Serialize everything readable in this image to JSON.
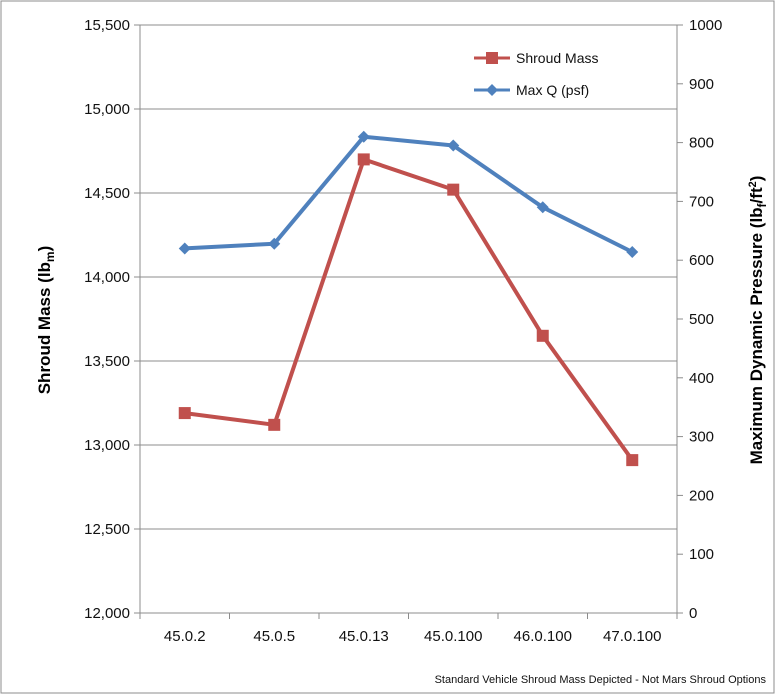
{
  "chart_data": {
    "type": "line",
    "categories": [
      "45.0.2",
      "45.0.5",
      "45.0.13",
      "45.0.100",
      "46.0.100",
      "47.0.100"
    ],
    "series": [
      {
        "name": "Shroud Mass",
        "axis": "left",
        "color": "#c0504d",
        "marker": "square",
        "values": [
          13190,
          13120,
          14700,
          14520,
          13650,
          12910
        ]
      },
      {
        "name": "Max Q (psf)",
        "axis": "right",
        "color": "#4f81bd",
        "marker": "diamond",
        "values": [
          620,
          628,
          810,
          795,
          690,
          614
        ]
      }
    ],
    "ylabel_left": {
      "main": "Shroud Mass (lb",
      "sub": "m",
      "tail": ")"
    },
    "ylabel_right": {
      "main": "Maximum Dynamic Pressure (lb",
      "sub": "f",
      "mid": "/ft",
      "sup": "2",
      "tail": ")"
    },
    "ylim_left": [
      12000,
      15500
    ],
    "ylim_right": [
      0,
      1000
    ],
    "yticks_left": [
      "12,000",
      "12,500",
      "13,000",
      "13,500",
      "14,000",
      "14,500",
      "15,000",
      "15,500"
    ],
    "yticks_right": [
      "0",
      "100",
      "200",
      "300",
      "400",
      "500",
      "600",
      "700",
      "800",
      "900",
      "1000"
    ],
    "grid": true,
    "legend": "top-right",
    "footnote": "Standard Vehicle Shroud Mass Depicted - Not Mars Shroud Options"
  }
}
